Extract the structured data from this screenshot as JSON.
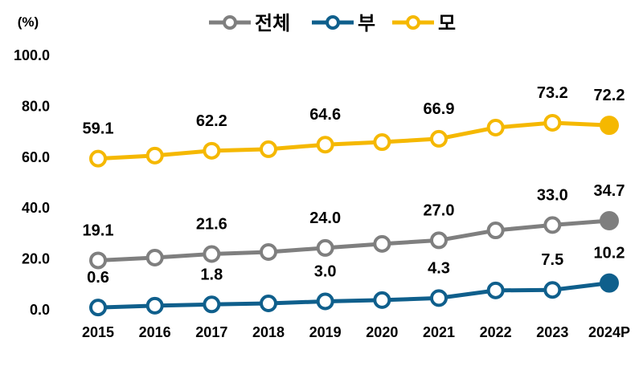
{
  "chart_data": {
    "type": "line",
    "title": "",
    "ylabel": "(%)",
    "xlabel": "",
    "ylim": [
      0,
      100
    ],
    "yticks": [
      "0.0",
      "20.0",
      "40.0",
      "60.0",
      "80.0",
      "100.0"
    ],
    "categories": [
      "2015",
      "2016",
      "2017",
      "2018",
      "2019",
      "2020",
      "2021",
      "2022",
      "2023",
      "2024P"
    ],
    "legend_position": "top",
    "grid": false,
    "series": [
      {
        "name": "전체",
        "color": "#7f7f7f",
        "values": [
          19.1,
          20.2,
          21.6,
          22.4,
          24.0,
          25.6,
          27.0,
          30.9,
          33.0,
          34.7
        ],
        "labels": [
          "19.1",
          "",
          "21.6",
          "",
          "24.0",
          "",
          "27.0",
          "",
          "33.0",
          "34.7"
        ]
      },
      {
        "name": "부",
        "color": "#0f5f8c",
        "values": [
          0.6,
          1.3,
          1.8,
          2.2,
          3.0,
          3.5,
          4.3,
          7.3,
          7.5,
          10.2
        ],
        "labels": [
          "0.6",
          "",
          "1.8",
          "",
          "3.0",
          "",
          "4.3",
          "",
          "7.5",
          "10.2"
        ]
      },
      {
        "name": "모",
        "color": "#f5b800",
        "values": [
          59.1,
          60.3,
          62.2,
          62.8,
          64.6,
          65.6,
          66.9,
          71.3,
          73.2,
          72.2
        ],
        "labels": [
          "59.1",
          "",
          "62.2",
          "",
          "64.6",
          "",
          "66.9",
          "",
          "73.2",
          "72.2"
        ]
      }
    ]
  }
}
